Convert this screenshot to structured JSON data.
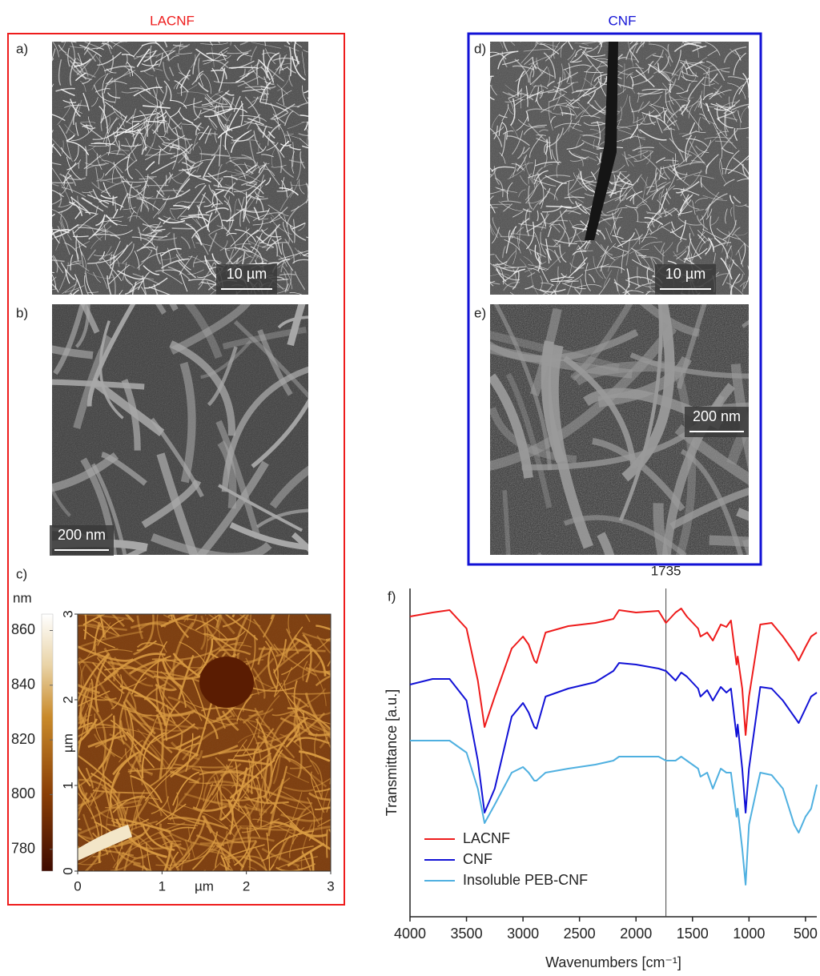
{
  "lacnf": {
    "title": "LACNF"
  },
  "cnf": {
    "title": "CNF"
  },
  "panels": {
    "a": {
      "label": "a)",
      "scale_bar": "10 µm"
    },
    "b": {
      "label": "b)",
      "scale_bar": "200 nm"
    },
    "c": {
      "label": "c)"
    },
    "d": {
      "label": "d)",
      "scale_bar": "10 µm"
    },
    "e": {
      "label": "e)",
      "scale_bar": "200 nm"
    },
    "f": {
      "label": "f)"
    }
  },
  "afm": {
    "colorbar": {
      "label": "nm",
      "lim": [
        772,
        866
      ],
      "ticks": [
        860,
        840,
        820,
        800,
        780
      ]
    },
    "x_label": "µm",
    "y_label": "µm",
    "xlim": [
      0,
      3
    ],
    "ylim": [
      0,
      3
    ],
    "xticks": [
      0,
      1,
      2,
      3
    ],
    "yticks": [
      0,
      1,
      2,
      3
    ]
  },
  "chart_data": {
    "type": "line",
    "x_label": "Wavenumbers [cm⁻¹]",
    "y_label": "Transmittance [a.u.]",
    "xlim": [
      4000,
      400
    ],
    "ylim": [
      0,
      410
    ],
    "xticks": [
      4000,
      3500,
      3000,
      2500,
      2000,
      1500,
      1000,
      500
    ],
    "vline": 1735,
    "legend": "lower left",
    "x": [
      4000,
      3800,
      3650,
      3500,
      3400,
      3340,
      3250,
      3100,
      3000,
      2950,
      2900,
      2880,
      2800,
      2600,
      2360,
      2200,
      2150,
      2000,
      1800,
      1735,
      1650,
      1600,
      1550,
      1450,
      1430,
      1370,
      1320,
      1250,
      1200,
      1160,
      1110,
      1100,
      1060,
      1030,
      1000,
      900,
      800,
      700,
      600,
      560,
      500,
      450,
      400
    ],
    "series": [
      {
        "name": "LACNF",
        "color": "#ee1c1c",
        "values": [
          375,
          380,
          383,
          360,
          295,
          237,
          275,
          335,
          350,
          340,
          320,
          317,
          355,
          363,
          367,
          372,
          383,
          380,
          382,
          367,
          380,
          385,
          375,
          360,
          350,
          355,
          345,
          365,
          362,
          370,
          315,
          325,
          285,
          227,
          275,
          365,
          367,
          350,
          330,
          320,
          337,
          350,
          355
        ]
      },
      {
        "name": "CNF",
        "color": "#1212d6",
        "values": [
          290,
          297,
          297,
          270,
          195,
          130,
          160,
          250,
          267,
          255,
          237,
          235,
          275,
          285,
          293,
          307,
          317,
          315,
          310,
          307,
          295,
          305,
          300,
          285,
          275,
          283,
          270,
          287,
          280,
          285,
          225,
          240,
          185,
          130,
          185,
          287,
          285,
          270,
          250,
          242,
          260,
          275,
          280
        ]
      },
      {
        "name": "Insoluble PEB-CNF",
        "color": "#4fb0e0",
        "values": [
          220,
          220,
          220,
          205,
          160,
          117,
          140,
          180,
          187,
          180,
          170,
          170,
          180,
          185,
          190,
          195,
          200,
          200,
          200,
          195,
          195,
          200,
          195,
          185,
          175,
          180,
          160,
          185,
          180,
          180,
          125,
          135,
          85,
          40,
          115,
          180,
          177,
          160,
          115,
          105,
          125,
          135,
          165
        ]
      }
    ]
  }
}
